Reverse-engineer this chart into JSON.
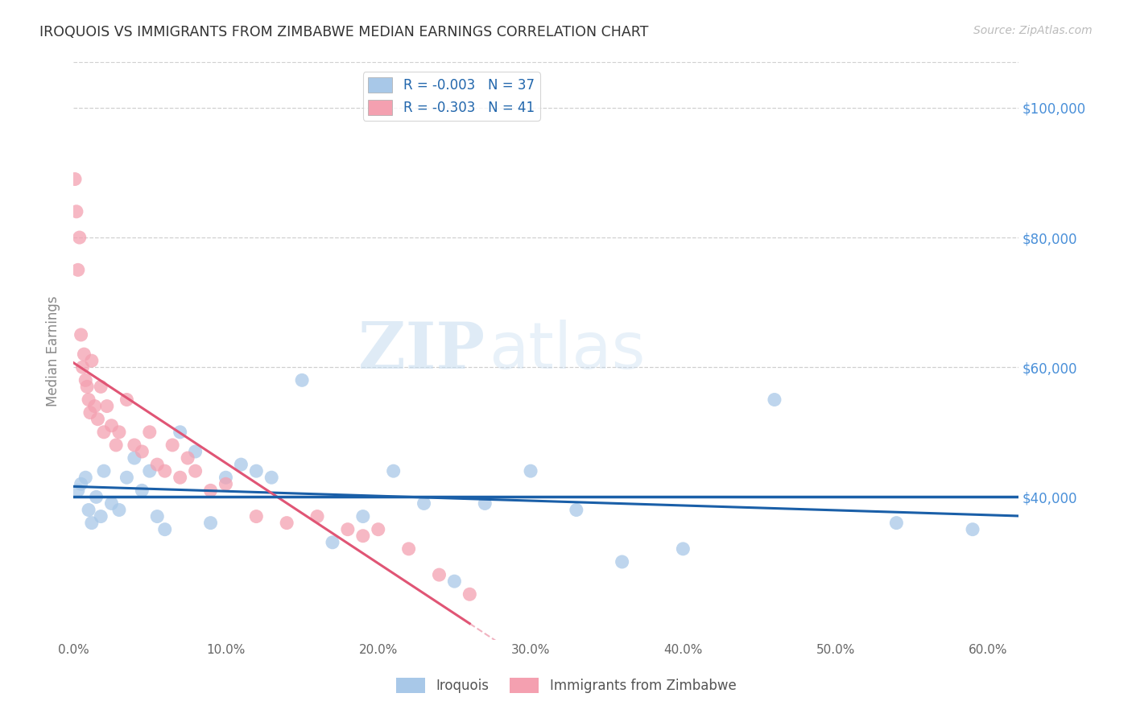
{
  "title": "IROQUOIS VS IMMIGRANTS FROM ZIMBABWE MEDIAN EARNINGS CORRELATION CHART",
  "source": "Source: ZipAtlas.com",
  "ylabel": "Median Earnings",
  "ylabel_ticks": [
    "$40,000",
    "$60,000",
    "$80,000",
    "$100,000"
  ],
  "ylabel_vals": [
    40000,
    60000,
    80000,
    100000
  ],
  "xlabel_ticks": [
    "0.0%",
    "10.0%",
    "20.0%",
    "30.0%",
    "40.0%",
    "50.0%",
    "60.0%"
  ],
  "xlabel_vals": [
    0.0,
    10.0,
    20.0,
    30.0,
    40.0,
    50.0,
    60.0
  ],
  "xlim": [
    0.0,
    62.0
  ],
  "ylim": [
    18000,
    107000
  ],
  "blue_color": "#a8c8e8",
  "pink_color": "#f4a0b0",
  "blue_line_color": "#1a5fa8",
  "pink_line_color": "#e05575",
  "ref_line_color": "#1a5fa8",
  "ref_line_y": 40000,
  "grid_color": "#d0d0d0",
  "watermark_zip": "ZIP",
  "watermark_atlas": "atlas",
  "legend_label_blue": "R = -0.003   N = 37",
  "legend_label_pink": "R = -0.303   N = 41",
  "bottom_legend_blue": "Iroquois",
  "bottom_legend_pink": "Immigrants from Zimbabwe",
  "iroquois_x": [
    0.3,
    0.5,
    0.8,
    1.0,
    1.2,
    1.5,
    1.8,
    2.0,
    2.5,
    3.0,
    3.5,
    4.0,
    4.5,
    5.0,
    5.5,
    6.0,
    7.0,
    8.0,
    9.0,
    10.0,
    11.0,
    12.0,
    13.0,
    15.0,
    17.0,
    19.0,
    21.0,
    23.0,
    25.0,
    27.0,
    30.0,
    33.0,
    36.0,
    40.0,
    46.0,
    54.0,
    59.0
  ],
  "iroquois_y": [
    41000,
    42000,
    43000,
    38000,
    36000,
    40000,
    37000,
    44000,
    39000,
    38000,
    43000,
    46000,
    41000,
    44000,
    37000,
    35000,
    50000,
    47000,
    36000,
    43000,
    45000,
    44000,
    43000,
    58000,
    33000,
    37000,
    44000,
    39000,
    27000,
    39000,
    44000,
    38000,
    30000,
    32000,
    55000,
    36000,
    35000
  ],
  "zimbabwe_x": [
    0.1,
    0.2,
    0.3,
    0.4,
    0.5,
    0.6,
    0.7,
    0.8,
    0.9,
    1.0,
    1.1,
    1.2,
    1.4,
    1.6,
    1.8,
    2.0,
    2.2,
    2.5,
    2.8,
    3.0,
    3.5,
    4.0,
    4.5,
    5.0,
    5.5,
    6.0,
    6.5,
    7.0,
    7.5,
    8.0,
    9.0,
    10.0,
    12.0,
    14.0,
    16.0,
    18.0,
    19.0,
    20.0,
    22.0,
    24.0,
    26.0
  ],
  "zimbabwe_y": [
    89000,
    84000,
    75000,
    80000,
    65000,
    60000,
    62000,
    58000,
    57000,
    55000,
    53000,
    61000,
    54000,
    52000,
    57000,
    50000,
    54000,
    51000,
    48000,
    50000,
    55000,
    48000,
    47000,
    50000,
    45000,
    44000,
    48000,
    43000,
    46000,
    44000,
    41000,
    42000,
    37000,
    36000,
    37000,
    35000,
    34000,
    35000,
    32000,
    28000,
    25000
  ]
}
